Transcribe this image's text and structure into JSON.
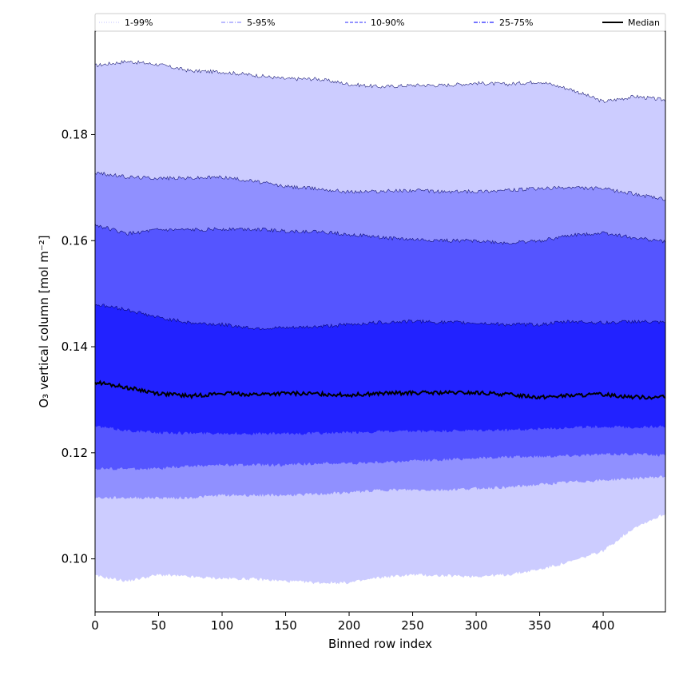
{
  "chart_data": {
    "type": "area",
    "xlabel": "Binned row index",
    "ylabel": "O₃ vertical column [mol m⁻²]",
    "xlim": [
      0,
      449
    ],
    "ylim": [
      0.09,
      0.1995
    ],
    "x_ticks": [
      0,
      50,
      100,
      150,
      200,
      250,
      300,
      350,
      400
    ],
    "y_ticks": [
      0.1,
      0.12,
      0.14,
      0.16,
      0.18
    ],
    "y_tick_labels": [
      "0.10",
      "0.12",
      "0.14",
      "0.16",
      "0.18"
    ],
    "grid": false,
    "legend_position": "top, full width",
    "x": [
      0,
      25,
      50,
      75,
      100,
      125,
      150,
      175,
      200,
      225,
      250,
      275,
      300,
      325,
      350,
      375,
      400,
      425,
      449
    ],
    "series": [
      {
        "name": "1-99%",
        "color": "#ccccff",
        "lower": [
          0.0968,
          0.0958,
          0.097,
          0.0966,
          0.0963,
          0.0962,
          0.0958,
          0.0955,
          0.0955,
          0.0965,
          0.097,
          0.0968,
          0.0967,
          0.097,
          0.098,
          0.0995,
          0.1015,
          0.106,
          0.1085
        ],
        "upper": [
          0.193,
          0.1938,
          0.1932,
          0.192,
          0.1918,
          0.1912,
          0.1905,
          0.1905,
          0.1895,
          0.189,
          0.1893,
          0.1893,
          0.1897,
          0.1895,
          0.19,
          0.1885,
          0.1862,
          0.1872,
          0.1865
        ]
      },
      {
        "name": "5-95%",
        "color": "#9090ff",
        "lower": [
          0.1115,
          0.1115,
          0.1115,
          0.1115,
          0.112,
          0.112,
          0.112,
          0.1122,
          0.1125,
          0.113,
          0.113,
          0.113,
          0.1133,
          0.1135,
          0.114,
          0.1145,
          0.1148,
          0.1152,
          0.1155
        ],
        "upper": [
          0.1728,
          0.172,
          0.1718,
          0.1718,
          0.172,
          0.1712,
          0.1702,
          0.1698,
          0.1692,
          0.1693,
          0.1695,
          0.1692,
          0.1693,
          0.1695,
          0.1698,
          0.17,
          0.1698,
          0.1688,
          0.1677
        ]
      },
      {
        "name": "10-90%",
        "color": "#5555ff",
        "lower": [
          0.117,
          0.117,
          0.117,
          0.1175,
          0.1177,
          0.1177,
          0.1177,
          0.118,
          0.118,
          0.1182,
          0.1185,
          0.1187,
          0.119,
          0.1192,
          0.1193,
          0.1195,
          0.1197,
          0.1198,
          0.1195
        ],
        "upper": [
          0.163,
          0.1613,
          0.162,
          0.162,
          0.1622,
          0.1622,
          0.1618,
          0.1617,
          0.1612,
          0.1606,
          0.1602,
          0.16,
          0.16,
          0.1595,
          0.16,
          0.161,
          0.1615,
          0.1605,
          0.1598
        ]
      },
      {
        "name": "25-75%",
        "color": "#2222ff",
        "lower": [
          0.125,
          0.1242,
          0.1238,
          0.1237,
          0.1237,
          0.1236,
          0.1236,
          0.1237,
          0.1238,
          0.124,
          0.124,
          0.1241,
          0.1242,
          0.1243,
          0.1245,
          0.1248,
          0.1249,
          0.1248,
          0.125
        ],
        "upper": [
          0.148,
          0.147,
          0.1455,
          0.1445,
          0.1442,
          0.1435,
          0.1435,
          0.1438,
          0.1442,
          0.1446,
          0.1448,
          0.1446,
          0.1445,
          0.1442,
          0.1442,
          0.1448,
          0.1445,
          0.1448,
          0.1445
        ]
      },
      {
        "name": "Median",
        "color": "#000000",
        "values": [
          0.1333,
          0.1323,
          0.1312,
          0.1307,
          0.1312,
          0.131,
          0.1312,
          0.1311,
          0.1309,
          0.1312,
          0.1313,
          0.1313,
          0.1313,
          0.131,
          0.1305,
          0.1308,
          0.131,
          0.1305,
          0.1305
        ]
      }
    ],
    "legend": [
      {
        "label": "1-99%",
        "style": "dotted",
        "color": "#ccccff"
      },
      {
        "label": "5-95%",
        "style": "dashdot",
        "color": "#9090ff"
      },
      {
        "label": "10-90%",
        "style": "dashed",
        "color": "#5555ff"
      },
      {
        "label": "25-75%",
        "style": "dashdot",
        "color": "#2222ff"
      },
      {
        "label": "Median",
        "style": "solid",
        "color": "#000000"
      }
    ]
  }
}
